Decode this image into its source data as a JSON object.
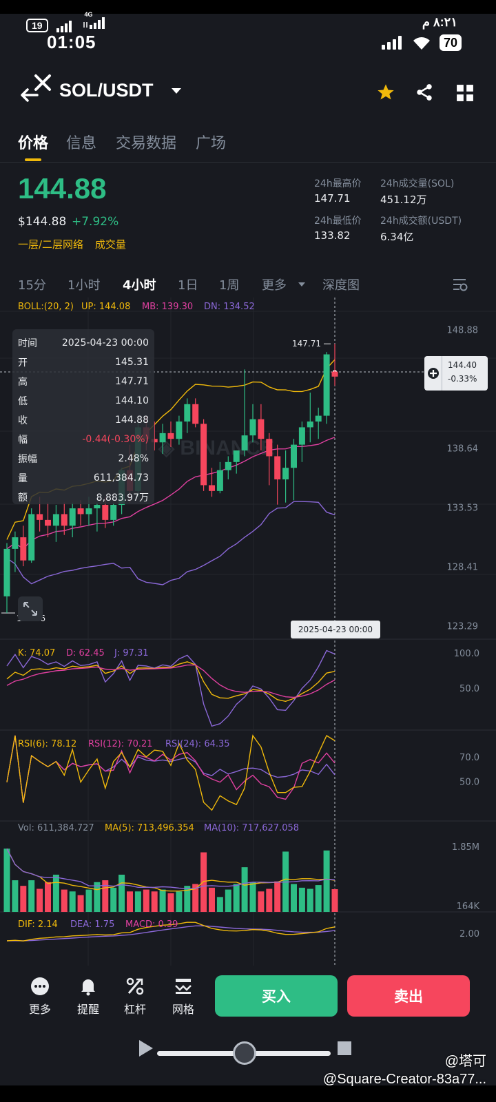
{
  "status_bar": {
    "badge": "19",
    "net": "4G",
    "time": "01:05",
    "arabic_time": "٨:٢١ م",
    "battery": "70"
  },
  "header": {
    "pair": "SOL/USDT"
  },
  "tabs": [
    "价格",
    "信息",
    "交易数据",
    "广场"
  ],
  "price": {
    "last": "144.88",
    "usd": "$144.88",
    "change": "+7.92%",
    "tags": [
      "一层/二层网络",
      "成交量"
    ],
    "stats": [
      {
        "label": "24h最高价",
        "value": "147.71"
      },
      {
        "label": "24h成交量(SOL)",
        "value": "451.12万"
      },
      {
        "label": "24h最低价",
        "value": "133.82"
      },
      {
        "label": "24h成交额(USDT)",
        "value": "6.34亿"
      }
    ]
  },
  "periods": [
    "15分",
    "1小时",
    "4小时",
    "1日",
    "1周",
    "更多",
    "深度图"
  ],
  "indicators": {
    "boll": {
      "name": "BOLL:(20, 2)",
      "up": "UP: 144.08",
      "mb": "MB: 139.30",
      "dn": "DN: 134.52"
    },
    "kdj": {
      "k": "K: 74.07",
      "d": "D: 62.45",
      "j": "J: 97.31"
    },
    "rsi": {
      "r6": "RSI(6): 78.12",
      "r12": "RSI(12): 70.21",
      "r24": "RSI(24): 64.35"
    },
    "vol": {
      "vol": "Vol: 611,384.727",
      "ma5": "MA(5): 713,496.354",
      "ma10": "MA(10): 717,627.058"
    },
    "macd": {
      "dif": "DIF: 2.14",
      "dea": "DEA: 1.75",
      "macd": "MACD: 0.39"
    }
  },
  "info_panel": [
    {
      "k": "时间",
      "v": "2025-04-23 00:00"
    },
    {
      "k": "开",
      "v": "145.31"
    },
    {
      "k": "高",
      "v": "147.71"
    },
    {
      "k": "低",
      "v": "144.10"
    },
    {
      "k": "收",
      "v": "144.88"
    },
    {
      "k": "幅",
      "v": "-0.44(-0.30%)"
    },
    {
      "k": "振幅",
      "v": "2.48%"
    },
    {
      "k": "量",
      "v": "611,384.73"
    },
    {
      "k": "额",
      "v": "8,883.97万"
    }
  ],
  "crosshair": {
    "price": "144.40",
    "pct": "-0.33%",
    "date": "2025-04-23 00:00"
  },
  "colors": {
    "up": "#2ebd85",
    "down": "#f6465d",
    "accent": "#f0b90b",
    "boll_up": "#f0b90b",
    "boll_mb": "#e040a0",
    "boll_dn": "#8b68d8"
  },
  "chart_data": {
    "type": "candlestick",
    "price_axis": [
      "148.88",
      "138.64",
      "133.53",
      "128.41",
      "123.29"
    ],
    "high_label": "147.71",
    "low_label": "124.46",
    "kdj_axis": [
      "100.0",
      "50.0"
    ],
    "rsi_axis": [
      "70.0",
      "50.0"
    ],
    "vol_axis": [
      "1.85M",
      "164K"
    ],
    "macd_axis": [
      "2.00"
    ],
    "candles": [
      {
        "o": 125.9,
        "h": 130.5,
        "l": 124.46,
        "c": 130.0
      },
      {
        "o": 130.0,
        "h": 131.5,
        "l": 128.0,
        "c": 131.0
      },
      {
        "o": 131.0,
        "h": 132.0,
        "l": 128.5,
        "c": 129.0
      },
      {
        "o": 129.0,
        "h": 133.5,
        "l": 128.8,
        "c": 133.0
      },
      {
        "o": 133.0,
        "h": 134.5,
        "l": 131.5,
        "c": 132.5
      },
      {
        "o": 132.5,
        "h": 134.0,
        "l": 131.0,
        "c": 132.0
      },
      {
        "o": 132.0,
        "h": 133.8,
        "l": 130.6,
        "c": 133.0
      },
      {
        "o": 133.0,
        "h": 134.0,
        "l": 131.2,
        "c": 132.0
      },
      {
        "o": 132.0,
        "h": 134.0,
        "l": 131.0,
        "c": 133.5
      },
      {
        "o": 133.5,
        "h": 134.2,
        "l": 132.0,
        "c": 133.0
      },
      {
        "o": 133.0,
        "h": 134.5,
        "l": 132.0,
        "c": 133.5
      },
      {
        "o": 133.5,
        "h": 134.0,
        "l": 131.5,
        "c": 133.8
      },
      {
        "o": 133.8,
        "h": 134.5,
        "l": 131.8,
        "c": 132.5
      },
      {
        "o": 132.5,
        "h": 134.0,
        "l": 132.0,
        "c": 133.8
      },
      {
        "o": 133.8,
        "h": 137.0,
        "l": 133.0,
        "c": 136.8
      },
      {
        "o": 136.8,
        "h": 139.0,
        "l": 134.0,
        "c": 135.0
      },
      {
        "o": 135.0,
        "h": 141.0,
        "l": 134.5,
        "c": 140.5
      },
      {
        "o": 140.5,
        "h": 141.5,
        "l": 138.5,
        "c": 139.5
      },
      {
        "o": 139.5,
        "h": 141.0,
        "l": 138.5,
        "c": 139.2
      },
      {
        "o": 139.2,
        "h": 140.8,
        "l": 138.2,
        "c": 140.0
      },
      {
        "o": 140.0,
        "h": 141.0,
        "l": 138.8,
        "c": 139.5
      },
      {
        "o": 139.5,
        "h": 141.5,
        "l": 139.0,
        "c": 141.0
      },
      {
        "o": 141.0,
        "h": 143.0,
        "l": 140.0,
        "c": 142.5
      },
      {
        "o": 142.5,
        "h": 143.0,
        "l": 140.5,
        "c": 140.8
      },
      {
        "o": 140.8,
        "h": 141.2,
        "l": 135.0,
        "c": 135.5
      },
      {
        "o": 135.5,
        "h": 137.0,
        "l": 134.5,
        "c": 135.0
      },
      {
        "o": 135.0,
        "h": 137.5,
        "l": 134.8,
        "c": 136.8
      },
      {
        "o": 136.8,
        "h": 138.0,
        "l": 136.0,
        "c": 137.5
      },
      {
        "o": 137.5,
        "h": 138.5,
        "l": 136.5,
        "c": 138.5
      },
      {
        "o": 138.5,
        "h": 145.5,
        "l": 138.0,
        "c": 139.8
      },
      {
        "o": 139.8,
        "h": 142.5,
        "l": 139.2,
        "c": 141.2
      },
      {
        "o": 141.2,
        "h": 142.5,
        "l": 138.5,
        "c": 139.5
      },
      {
        "o": 139.5,
        "h": 140.0,
        "l": 135.5,
        "c": 138.0
      },
      {
        "o": 138.0,
        "h": 139.0,
        "l": 133.82,
        "c": 136.0
      },
      {
        "o": 136.0,
        "h": 138.5,
        "l": 134.0,
        "c": 137.0
      },
      {
        "o": 137.0,
        "h": 139.5,
        "l": 134.2,
        "c": 139.0
      },
      {
        "o": 139.0,
        "h": 141.0,
        "l": 137.5,
        "c": 140.5
      },
      {
        "o": 140.5,
        "h": 143.5,
        "l": 139.2,
        "c": 141.0
      },
      {
        "o": 141.0,
        "h": 142.2,
        "l": 139.5,
        "c": 141.5
      },
      {
        "o": 141.5,
        "h": 147.0,
        "l": 140.8,
        "c": 146.8
      },
      {
        "o": 145.31,
        "h": 147.71,
        "l": 144.1,
        "c": 144.88
      }
    ],
    "volume": [
      1.7,
      0.85,
      0.7,
      0.85,
      0.62,
      0.8,
      1.0,
      0.6,
      0.55,
      0.45,
      0.6,
      0.8,
      0.85,
      0.65,
      1.0,
      0.55,
      0.55,
      0.6,
      0.55,
      0.6,
      0.5,
      0.55,
      0.7,
      0.75,
      1.6,
      0.65,
      0.4,
      0.6,
      0.75,
      1.2,
      0.8,
      0.55,
      0.62,
      0.82,
      1.62,
      0.75,
      0.65,
      0.62,
      0.72,
      1.65,
      0.61
    ]
  },
  "actions": [
    "更多",
    "提醒",
    "杠杆",
    "网格"
  ],
  "buy_label": "买入",
  "sell_label": "卖出",
  "watermark": {
    "line1": "@塔可",
    "line2": "@Square-Creator-83a77..."
  }
}
